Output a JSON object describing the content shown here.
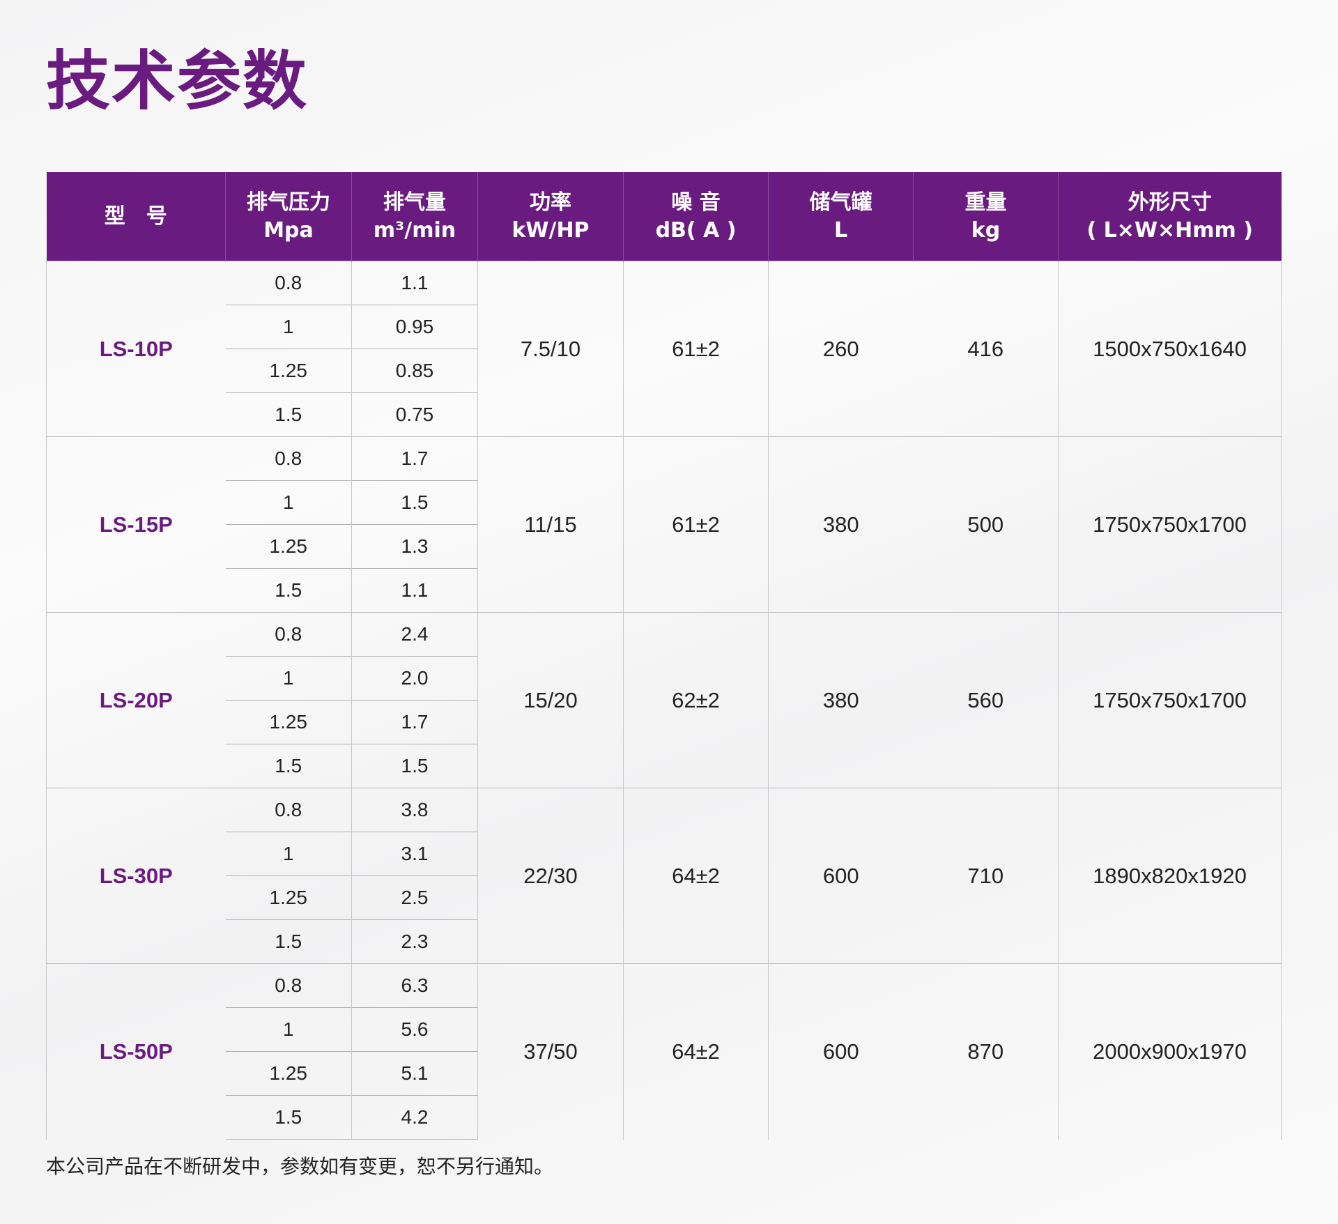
{
  "title": "技术参数",
  "headers": {
    "model": "型　号",
    "pressure": [
      "排气压力",
      "Mpa"
    ],
    "flow": [
      "排气量",
      "m³/min"
    ],
    "power": [
      "功率",
      "kW/HP"
    ],
    "noise": [
      "噪 音",
      "dB( A )"
    ],
    "tank": [
      "储气罐",
      "L"
    ],
    "weight": [
      "重量",
      "kg"
    ],
    "size": [
      "外形尺寸",
      "( L×W×Hmm )"
    ]
  },
  "models": [
    {
      "name": "LS-10P",
      "rows": [
        {
          "pressure": "0.8",
          "flow": "1.1"
        },
        {
          "pressure": "1",
          "flow": "0.95"
        },
        {
          "pressure": "1.25",
          "flow": "0.85"
        },
        {
          "pressure": "1.5",
          "flow": "0.75"
        }
      ],
      "power": "7.5/10",
      "noise": "61±2",
      "tank": "260",
      "weight": "416",
      "size": "1500x750x1640"
    },
    {
      "name": "LS-15P",
      "rows": [
        {
          "pressure": "0.8",
          "flow": "1.7"
        },
        {
          "pressure": "1",
          "flow": "1.5"
        },
        {
          "pressure": "1.25",
          "flow": "1.3"
        },
        {
          "pressure": "1.5",
          "flow": "1.1"
        }
      ],
      "power": "11/15",
      "noise": "61±2",
      "tank": "380",
      "weight": "500",
      "size": "1750x750x1700"
    },
    {
      "name": "LS-20P",
      "rows": [
        {
          "pressure": "0.8",
          "flow": "2.4"
        },
        {
          "pressure": "1",
          "flow": "2.0"
        },
        {
          "pressure": "1.25",
          "flow": "1.7"
        },
        {
          "pressure": "1.5",
          "flow": "1.5"
        }
      ],
      "power": "15/20",
      "noise": "62±2",
      "tank": "380",
      "weight": "560",
      "size": "1750x750x1700"
    },
    {
      "name": "LS-30P",
      "rows": [
        {
          "pressure": "0.8",
          "flow": "3.8"
        },
        {
          "pressure": "1",
          "flow": "3.1"
        },
        {
          "pressure": "1.25",
          "flow": "2.5"
        },
        {
          "pressure": "1.5",
          "flow": "2.3"
        }
      ],
      "power": "22/30",
      "noise": "64±2",
      "tank": "600",
      "weight": "710",
      "size": "1890x820x1920"
    },
    {
      "name": "LS-50P",
      "rows": [
        {
          "pressure": "0.8",
          "flow": "6.3"
        },
        {
          "pressure": "1",
          "flow": "5.6"
        },
        {
          "pressure": "1.25",
          "flow": "5.1"
        },
        {
          "pressure": "1.5",
          "flow": "4.2"
        }
      ],
      "power": "37/50",
      "noise": "64±2",
      "tank": "600",
      "weight": "870",
      "size": "2000x900x1970"
    }
  ],
  "footnote": "本公司产品在不断研发中，参数如有变更，恕不另行通知。",
  "colors": {
    "accent": "#6a1b7f",
    "header_text": "#ffffff",
    "rule": "#b8b8b8"
  }
}
